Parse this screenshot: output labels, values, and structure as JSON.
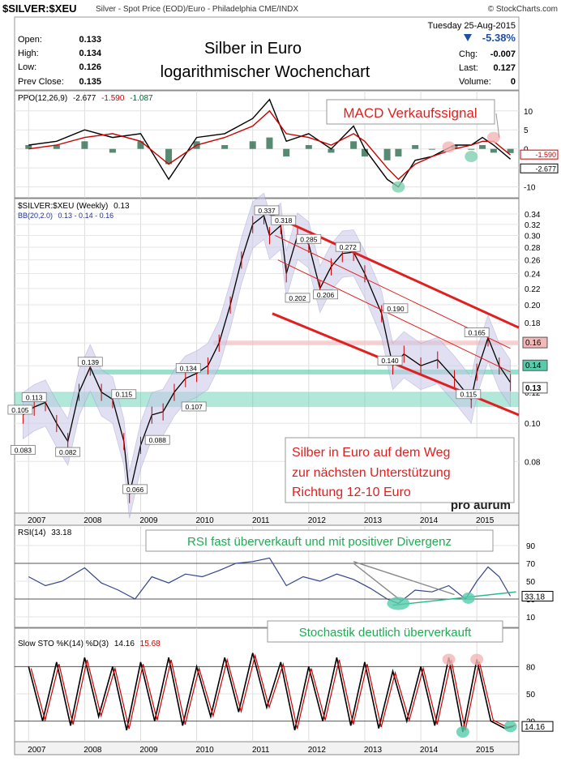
{
  "header": {
    "symbol": "$SILVER:$XEU",
    "description": "Silver - Spot Price (EOD)/Euro - Philadelphia CME/INDX",
    "brand": "© StockCharts.com",
    "date": "Tuesday  25-Aug-2015",
    "open_label": "Open:",
    "open_value": "0.133",
    "high_label": "High:",
    "high_value": "0.134",
    "low_label": "Low:",
    "low_value": "0.126",
    "prev_close_label": "Prev Close:",
    "prev_close_value": "0.135",
    "pct_change": "-5.38%",
    "chg_label": "Chg:",
    "chg_value": "-0.007",
    "last_label": "Last:",
    "last_value": "0.127",
    "volume_label": "Volume:",
    "volume_value": "0"
  },
  "annotations": {
    "title_line1": "Silber in Euro",
    "title_line2": "logarithmischer Wochenchart",
    "macd_signal": "MACD Verkaufssignal",
    "support_line1": "Silber in Euro auf dem Weg",
    "support_line2": "zur nächsten Unterstützung",
    "support_line3": "Richtung 12-10 Euro",
    "watermark": "pro aurum",
    "rsi_note": "RSI fast überverkauft und mit positiver Divergenz",
    "sto_note": "Stochastik deutlich überverkauft"
  },
  "chart_data": [
    {
      "type": "line",
      "panel": "PPO",
      "label_name": "PPO(12,26,9)",
      "label_values": [
        "-2.677",
        "-1.590",
        "-1.087"
      ],
      "series_colors": [
        "#000000",
        "#cc0000",
        "#006633"
      ],
      "y_ticks": [
        10,
        5,
        0,
        -5,
        -10
      ],
      "ylim": [
        -12,
        14
      ],
      "last_labels": [
        "-1.590",
        "-2.677"
      ],
      "x": [
        2007.0,
        2007.5,
        2008.0,
        2008.5,
        2009.0,
        2009.5,
        2010.0,
        2010.5,
        2011.0,
        2011.3,
        2011.6,
        2012.0,
        2012.4,
        2012.8,
        2013.0,
        2013.4,
        2013.6,
        2013.9,
        2014.2,
        2014.6,
        2014.9,
        2015.1,
        2015.3,
        2015.6
      ],
      "series": [
        {
          "values": [
            1,
            2,
            5,
            3,
            4,
            -8,
            3,
            4,
            8,
            13,
            2,
            4,
            0,
            6,
            0,
            -8,
            -10,
            -3,
            -2,
            1,
            1,
            3,
            1,
            -2.677
          ]
        },
        {
          "values": [
            0,
            1,
            3,
            4,
            2,
            -4,
            1,
            3,
            6,
            10,
            4,
            3,
            1,
            4,
            2,
            -5,
            -8,
            -4,
            -2,
            0,
            1,
            2,
            2,
            -1.59
          ]
        }
      ]
    },
    {
      "type": "line",
      "panel": "Price",
      "label_name": "$SILVER:$XEU (Weekly)",
      "label_value": "0.13",
      "bb_label": "BB(20,2.0)",
      "bb_values": "0.13 - 0.14 - 0.16",
      "y_scale": "log",
      "y_ticks": [
        0.34,
        0.32,
        0.3,
        0.28,
        0.26,
        0.24,
        0.22,
        0.2,
        0.18,
        0.16,
        0.14,
        0.12,
        0.1,
        0.08
      ],
      "ylim": [
        0.06,
        0.36
      ],
      "right_labels": [
        "0.16",
        "0.14",
        "0.13"
      ],
      "x_ticks": [
        "2007",
        "2008",
        "2009",
        "2010",
        "2011",
        "2012",
        "2013",
        "2014",
        "2015"
      ],
      "x": [
        2006.9,
        2007.1,
        2007.3,
        2007.5,
        2007.7,
        2007.9,
        2008.1,
        2008.3,
        2008.5,
        2008.7,
        2008.8,
        2009.0,
        2009.2,
        2009.4,
        2009.6,
        2009.8,
        2010.0,
        2010.2,
        2010.4,
        2010.6,
        2010.8,
        2011.0,
        2011.2,
        2011.3,
        2011.5,
        2011.6,
        2011.8,
        2012.0,
        2012.2,
        2012.4,
        2012.6,
        2012.8,
        2013.0,
        2013.3,
        2013.5,
        2013.7,
        2014.0,
        2014.3,
        2014.6,
        2014.9,
        2015.0,
        2015.2,
        2015.4,
        2015.6
      ],
      "values": [
        0.105,
        0.11,
        0.113,
        0.1,
        0.09,
        0.12,
        0.139,
        0.12,
        0.115,
        0.09,
        0.066,
        0.088,
        0.105,
        0.107,
        0.12,
        0.13,
        0.134,
        0.14,
        0.16,
        0.2,
        0.26,
        0.32,
        0.337,
        0.3,
        0.318,
        0.24,
        0.3,
        0.285,
        0.22,
        0.25,
        0.27,
        0.272,
        0.24,
        0.19,
        0.14,
        0.15,
        0.14,
        0.145,
        0.13,
        0.115,
        0.135,
        0.165,
        0.14,
        0.127
      ],
      "point_labels": [
        {
          "x": 2006.85,
          "y": 0.105,
          "text": "0.105"
        },
        {
          "x": 2006.9,
          "y": 0.083,
          "text": "0.083"
        },
        {
          "x": 2007.1,
          "y": 0.113,
          "text": "0.113"
        },
        {
          "x": 2007.7,
          "y": 0.082,
          "text": "0.082"
        },
        {
          "x": 2008.1,
          "y": 0.139,
          "text": "0.139"
        },
        {
          "x": 2008.7,
          "y": 0.115,
          "text": "0.115"
        },
        {
          "x": 2008.9,
          "y": 0.066,
          "text": "0.066"
        },
        {
          "x": 2009.3,
          "y": 0.088,
          "text": "0.088"
        },
        {
          "x": 2009.95,
          "y": 0.107,
          "text": "0.107"
        },
        {
          "x": 2009.85,
          "y": 0.134,
          "text": "0.134"
        },
        {
          "x": 2011.25,
          "y": 0.337,
          "text": "0.337"
        },
        {
          "x": 2011.55,
          "y": 0.318,
          "text": "0.318"
        },
        {
          "x": 2012.0,
          "y": 0.285,
          "text": "0.285"
        },
        {
          "x": 2012.7,
          "y": 0.272,
          "text": "0.272"
        },
        {
          "x": 2011.8,
          "y": 0.202,
          "text": "0.202"
        },
        {
          "x": 2012.3,
          "y": 0.206,
          "text": "0.206"
        },
        {
          "x": 2013.55,
          "y": 0.19,
          "text": "0.190"
        },
        {
          "x": 2013.45,
          "y": 0.14,
          "text": "0.140"
        },
        {
          "x": 2014.85,
          "y": 0.115,
          "text": "0.115"
        },
        {
          "x": 2015.0,
          "y": 0.165,
          "text": "0.165"
        }
      ]
    },
    {
      "type": "line",
      "panel": "RSI",
      "label_name": "RSI(14)",
      "label_value": "33.18",
      "y_ticks": [
        90,
        70,
        50,
        30,
        10
      ],
      "ylim": [
        0,
        100
      ],
      "last_label": "33.18",
      "x": [
        2007.0,
        2007.3,
        2007.6,
        2008.0,
        2008.3,
        2008.6,
        2008.9,
        2009.2,
        2009.5,
        2009.8,
        2010.1,
        2010.4,
        2010.7,
        2011.0,
        2011.3,
        2011.6,
        2011.9,
        2012.2,
        2012.5,
        2012.8,
        2013.1,
        2013.4,
        2013.6,
        2013.9,
        2014.2,
        2014.5,
        2014.8,
        2015.0,
        2015.2,
        2015.4,
        2015.6
      ],
      "values": [
        55,
        45,
        50,
        65,
        48,
        40,
        30,
        55,
        48,
        58,
        55,
        62,
        70,
        72,
        76,
        45,
        55,
        50,
        58,
        52,
        42,
        30,
        25,
        40,
        38,
        45,
        30,
        50,
        66,
        55,
        33.18
      ]
    },
    {
      "type": "line",
      "panel": "STO",
      "label_name": "Slow STO %K(14) %D(3)",
      "label_values": [
        "14.16",
        "15.68"
      ],
      "y_ticks": [
        80,
        50,
        20
      ],
      "ylim": [
        0,
        100
      ],
      "last_label": "14.16",
      "x": [
        2007.0,
        2007.25,
        2007.5,
        2007.75,
        2008.0,
        2008.25,
        2008.5,
        2008.75,
        2009.0,
        2009.25,
        2009.5,
        2009.75,
        2010.0,
        2010.25,
        2010.5,
        2010.75,
        2011.0,
        2011.25,
        2011.5,
        2011.75,
        2012.0,
        2012.25,
        2012.5,
        2012.75,
        2013.0,
        2013.25,
        2013.5,
        2013.75,
        2014.0,
        2014.25,
        2014.5,
        2014.75,
        2015.0,
        2015.25,
        2015.5,
        2015.65
      ],
      "values": [
        80,
        20,
        85,
        15,
        90,
        25,
        80,
        10,
        85,
        20,
        90,
        15,
        80,
        25,
        90,
        30,
        95,
        35,
        85,
        10,
        80,
        20,
        90,
        15,
        85,
        12,
        75,
        20,
        80,
        15,
        90,
        8,
        88,
        20,
        12,
        14.16
      ]
    }
  ]
}
